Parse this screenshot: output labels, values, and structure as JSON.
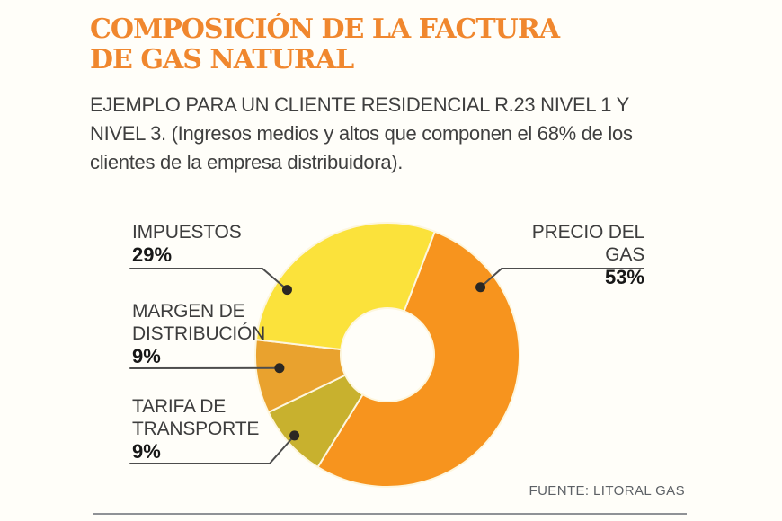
{
  "header": {
    "title_lines": [
      "COMPOSICIÓN DE LA FACTURA",
      "DE GAS NATURAL"
    ],
    "subtitle_lines": [
      "EJEMPLO PARA UN CLIENTE RESIDENCIAL R.23 NIVEL 1 Y",
      "NIVEL 3. (Ingresos medios y altos que componen el 68% de los",
      "clientes de la empresa distribuidora)."
    ]
  },
  "footer": {
    "source": "FUENTE: LITORAL GAS"
  },
  "colors": {
    "title_accent": "#F0872E",
    "slice_gap_stroke": "#FDF6DE",
    "callout_line": "#4D4D4D",
    "callout_dot": "#2B2723",
    "background": "#FFFEF9"
  },
  "chart_data": {
    "type": "pie",
    "donut": true,
    "title": "COMPOSICIÓN DE LA FACTURA DE GAS NATURAL",
    "subtitle": "EJEMPLO PARA UN CLIENTE RESIDENCIAL R.23 NIVEL 1 Y NIVEL 3. (Ingresos medios y altos que componen el 68% de los clientes de la empresa distribuidora).",
    "unit": "%",
    "start_angle_deg": 21,
    "direction": "clockwise",
    "legend_position": "callout-labels",
    "slices": [
      {
        "label": "PRECIO DEL GAS",
        "value": 53,
        "pct_label": "53%",
        "color": "#F7941E"
      },
      {
        "label": "TARIFA DE TRANSPORTE",
        "value": 9,
        "pct_label": "9%",
        "color": "#C8B12E"
      },
      {
        "label": "MARGEN DE DISTRIBUCIÓN",
        "value": 9,
        "pct_label": "9%",
        "color": "#E9A22E"
      },
      {
        "label": "IMPUESTOS",
        "value": 29,
        "pct_label": "29%",
        "color": "#FBE23B"
      }
    ],
    "source": "FUENTE: LITORAL GAS"
  }
}
